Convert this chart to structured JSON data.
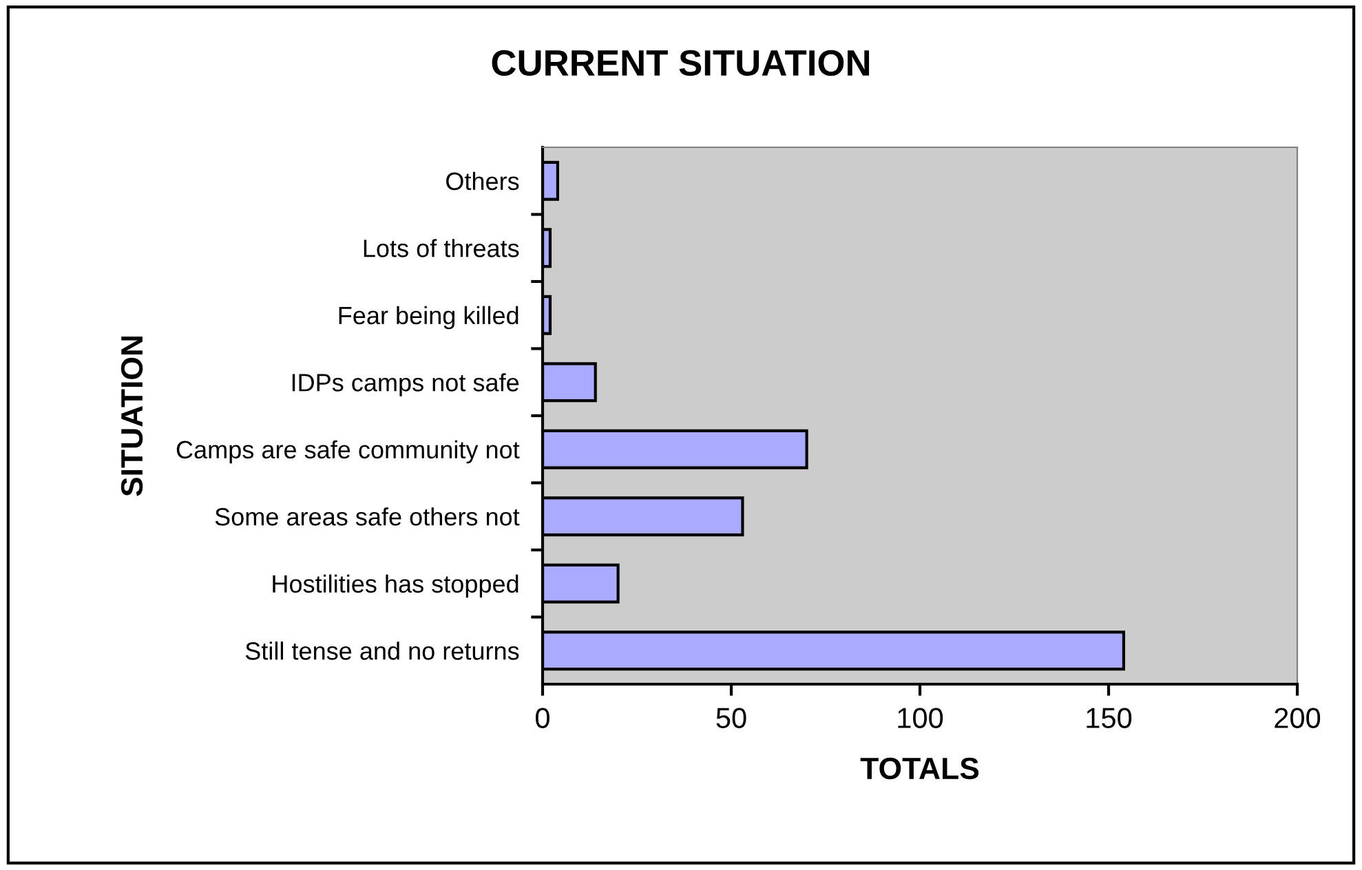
{
  "chart_data": {
    "type": "bar",
    "orientation": "horizontal",
    "title": "CURRENT SITUATION",
    "xlabel": "TOTALS",
    "ylabel": "SITUATION",
    "categories": [
      "Others",
      "Lots of threats",
      "Fear being killed",
      "IDPs camps not safe",
      "Camps are safe community not",
      "Some areas safe others not",
      "Hostilities has stopped",
      "Still tense and no returns"
    ],
    "values": [
      4,
      2,
      2,
      14,
      70,
      53,
      20,
      154
    ],
    "color": "#aaaaff",
    "xlim": [
      0,
      200
    ],
    "xticks": [
      0,
      50,
      100,
      150,
      200
    ],
    "grid": false,
    "legend": false
  }
}
